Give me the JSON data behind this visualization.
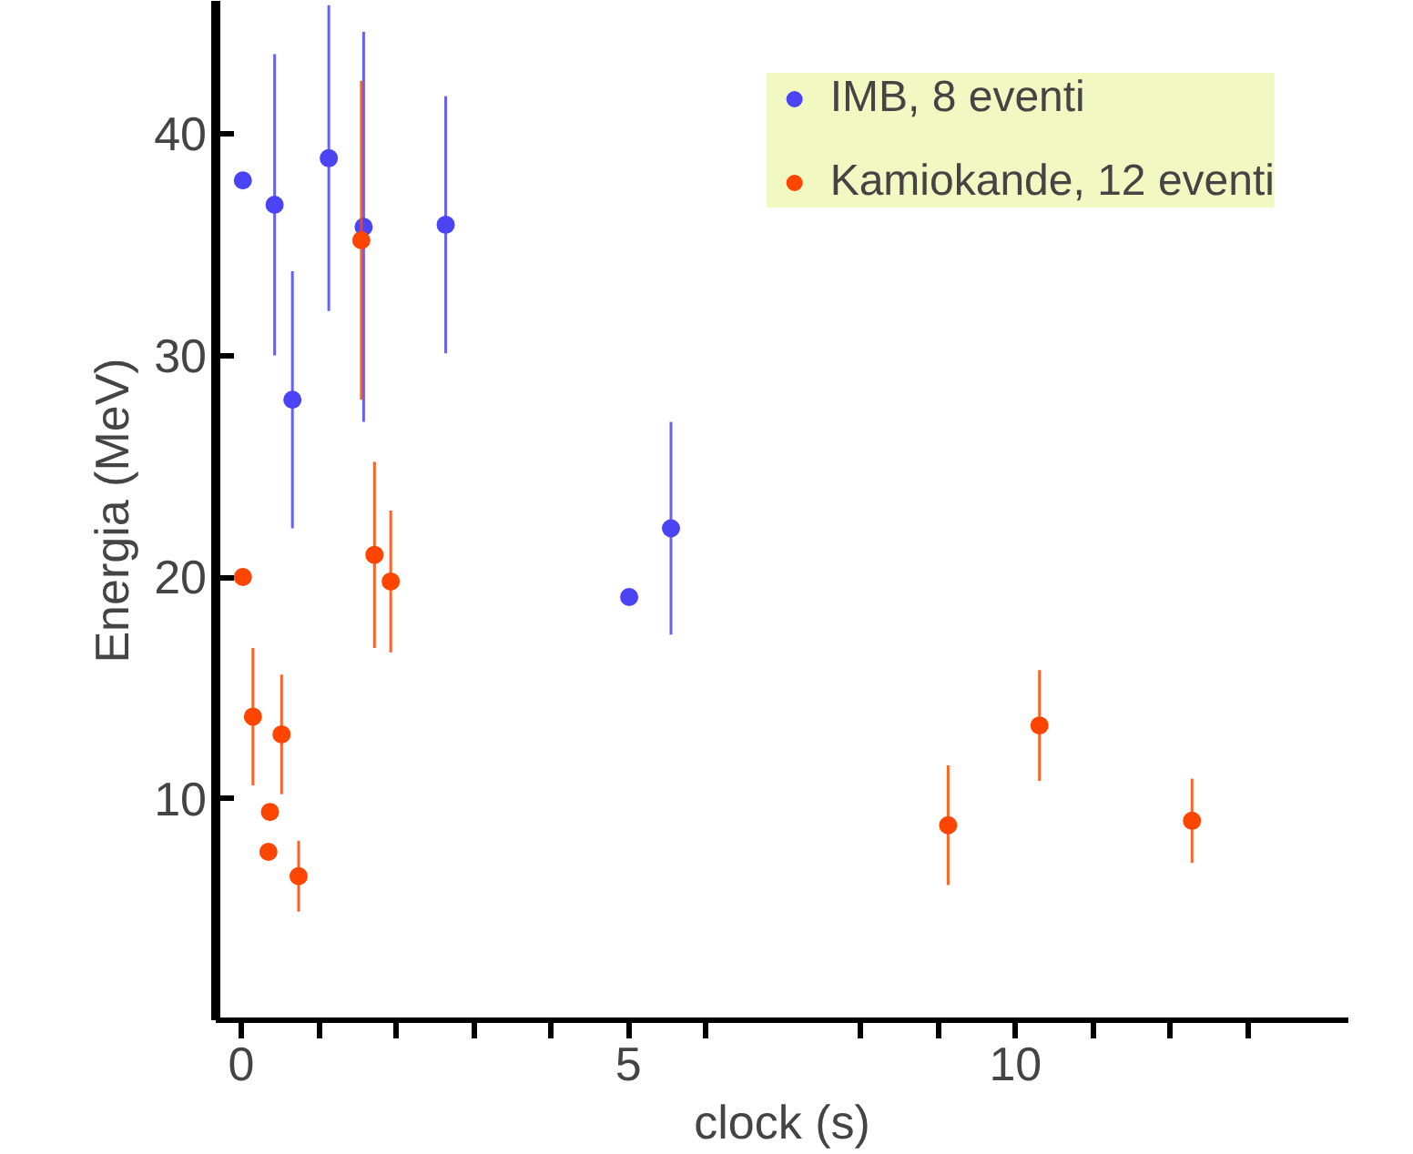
{
  "chart_data": {
    "type": "scatter",
    "xlabel": "clock (s)",
    "ylabel": "Energia (MeV)",
    "xlim": [
      -0.33,
      14.3
    ],
    "ylim": [
      0,
      46
    ],
    "xticks": [
      0,
      {
        "value": 1,
        "label": null
      },
      {
        "value": 2,
        "label": null
      },
      {
        "value": 3,
        "label": null
      },
      {
        "value": 4,
        "label": null
      },
      5,
      {
        "value": 6,
        "label": null
      },
      {
        "value": 8,
        "label": null
      },
      {
        "value": 9,
        "label": null
      },
      10,
      {
        "value": 11,
        "label": null
      },
      {
        "value": 12,
        "label": null
      },
      {
        "value": 13,
        "label": null
      }
    ],
    "yticks": [
      10,
      20,
      30,
      40
    ],
    "grid": false,
    "legend": "top right",
    "marker": "circle",
    "series": [
      {
        "name": "IMB, 8 eventi",
        "color": "#4b44f5",
        "x": [
          0.02,
          0.43,
          0.66,
          1.13,
          1.58,
          2.64,
          5.01,
          5.55
        ],
        "values": [
          37.9,
          36.8,
          28.0,
          38.9,
          35.8,
          35.9,
          19.1,
          22.2
        ],
        "errors": [
          null,
          6.8,
          5.8,
          6.9,
          8.8,
          5.8,
          null,
          4.8
        ]
      },
      {
        "name": "Kamiokande, 12 eventi",
        "color": "#ff4500",
        "x": [
          0.02,
          0.15,
          0.37,
          0.35,
          0.52,
          0.74,
          1.55,
          1.72,
          1.93,
          9.13,
          10.31,
          12.28
        ],
        "values": [
          20.0,
          13.7,
          9.4,
          7.6,
          12.9,
          6.5,
          35.2,
          21.0,
          19.8,
          8.8,
          13.3,
          9.0
        ],
        "errors": [
          null,
          3.1,
          null,
          null,
          2.7,
          1.6,
          7.2,
          4.2,
          3.2,
          2.7,
          2.5,
          1.9
        ]
      }
    ]
  }
}
